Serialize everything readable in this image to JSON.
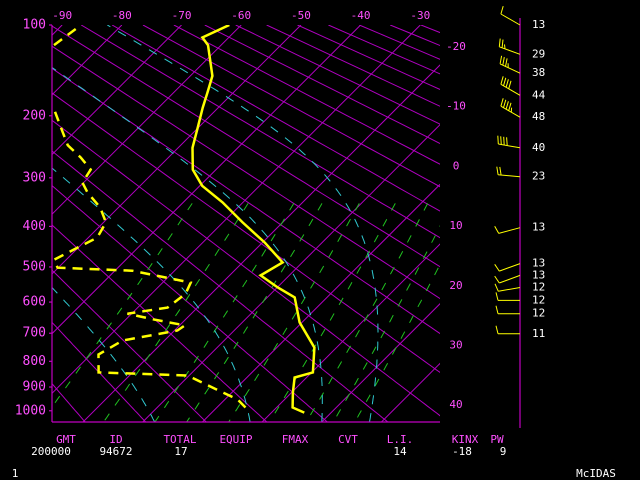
{
  "chart_data": {
    "type": "skewt",
    "yscale": "poisson",
    "ylim": [
      1050,
      100
    ],
    "yticks": [
      100,
      200,
      300,
      400,
      500,
      600,
      700,
      800,
      900,
      1000
    ],
    "xlim": [
      -91.7,
      -26.7
    ],
    "xticks": [
      -90,
      -80,
      -70,
      -60,
      -50,
      -40,
      -30
    ],
    "isotherm_ticks": [
      -20,
      -10,
      0,
      10,
      20,
      30,
      40
    ],
    "series": [
      {
        "color": "#ffff00",
        "style": "solid",
        "pressure": [
          1008,
          986,
          922,
          862,
          842,
          750,
          664,
          586,
          557,
          523,
          488,
          438,
          391,
          348,
          315,
          285,
          248,
          217,
          189,
          170,
          150,
          118,
          111,
          100
        ],
        "values": [
          15.5,
          12.7,
          10.2,
          8.0,
          10.2,
          6.3,
          -0.4,
          -5.4,
          -9.9,
          -14.8,
          -13.3,
          -19.6,
          -26.7,
          -33.4,
          -39.6,
          -43.9,
          -47.6,
          -50.1,
          -52.6,
          -54.3,
          -56.3,
          -62.2,
          -64.4,
          -62.0
        ]
      },
      {
        "color": "#ffff00",
        "style": "dashed",
        "pressure": [
          986,
          951,
          902,
          854,
          842,
          775,
          725,
          691,
          674,
          654,
          636,
          617,
          575,
          543,
          510,
          502,
          481,
          450,
          426,
          391,
          359,
          328,
          309,
          285,
          264,
          244,
          224,
          192,
          null,
          118,
          100
        ],
        "values": [
          4.8,
          2.1,
          -4.1,
          -10.3,
          -25.7,
          -28.7,
          -27.0,
          -19.5,
          -19.1,
          -25.5,
          -30.7,
          -25.0,
          -24.3,
          -25.3,
          -37.1,
          -50.1,
          -52.0,
          -50.1,
          -48.5,
          -49.6,
          -53.0,
          -57.7,
          -60.2,
          -61.0,
          -64.7,
          -68.9,
          -71.9,
          -77.1,
          null,
          -88.0,
          -86.8
        ]
      }
    ],
    "wind": {
      "color": "#ffff00",
      "pressure": [
        100,
        127,
        147,
        173,
        202,
        248,
        298,
        403,
        491,
        523,
        557,
        595,
        636,
        702
      ],
      "speed": [
        13,
        29,
        38,
        44,
        48,
        40,
        23,
        13,
        13,
        13,
        12,
        12,
        12,
        11
      ],
      "direction": [
        300,
        290,
        295,
        300,
        300,
        280,
        275,
        255,
        250,
        250,
        260,
        270,
        270,
        270
      ]
    }
  },
  "indices": {
    "headers": [
      "GMT",
      "ID",
      "TOTAL",
      "EQUIP",
      "FMAX",
      "CVT",
      "L.I.",
      "KINX",
      "PW"
    ],
    "values": [
      "200000",
      "94672",
      17,
      null,
      null,
      null,
      14,
      -18,
      9
    ]
  },
  "footer": {
    "left": "1",
    "right": "McIDAS"
  }
}
